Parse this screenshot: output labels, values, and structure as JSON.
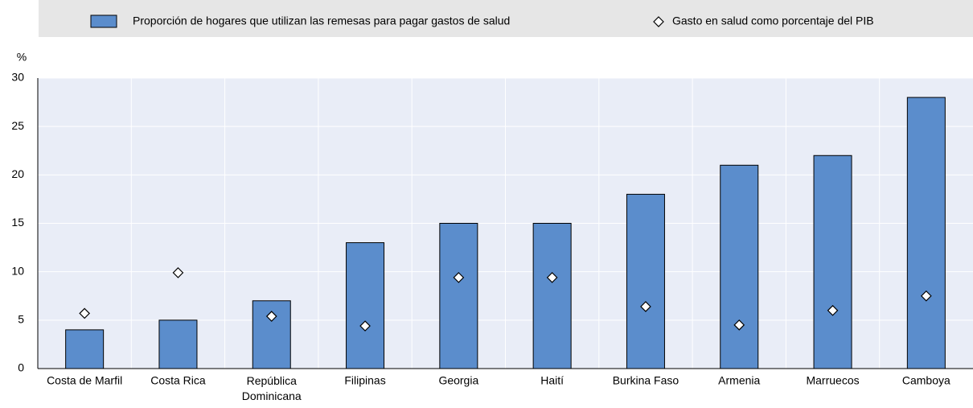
{
  "chart_data": {
    "type": "bar",
    "y_label": "%",
    "categories": [
      "Costa de Marfil",
      "Costa Rica",
      "República\nDominicana",
      "Filipinas",
      "Georgia",
      "Haití",
      "Burkina Faso",
      "Armenia",
      "Marruecos",
      "Camboya"
    ],
    "series": [
      {
        "name": "Proporción de hogares que utilizan las remesas para pagar gastos de salud",
        "type": "bar",
        "color": "#5b8dcc",
        "values": [
          4,
          5,
          7,
          13,
          15,
          15,
          18,
          21,
          22,
          28
        ]
      },
      {
        "name": "Gasto en salud como porcentaje del PIB",
        "type": "diamond",
        "color": "#ffffff",
        "values": [
          5.7,
          9.9,
          5.4,
          4.4,
          9.4,
          9.4,
          6.4,
          4.5,
          6.0,
          7.5
        ]
      }
    ],
    "ylim": [
      0,
      30
    ],
    "yticks": [
      0,
      5,
      10,
      15,
      20,
      25,
      30
    ],
    "grid": true,
    "legend": "top"
  }
}
